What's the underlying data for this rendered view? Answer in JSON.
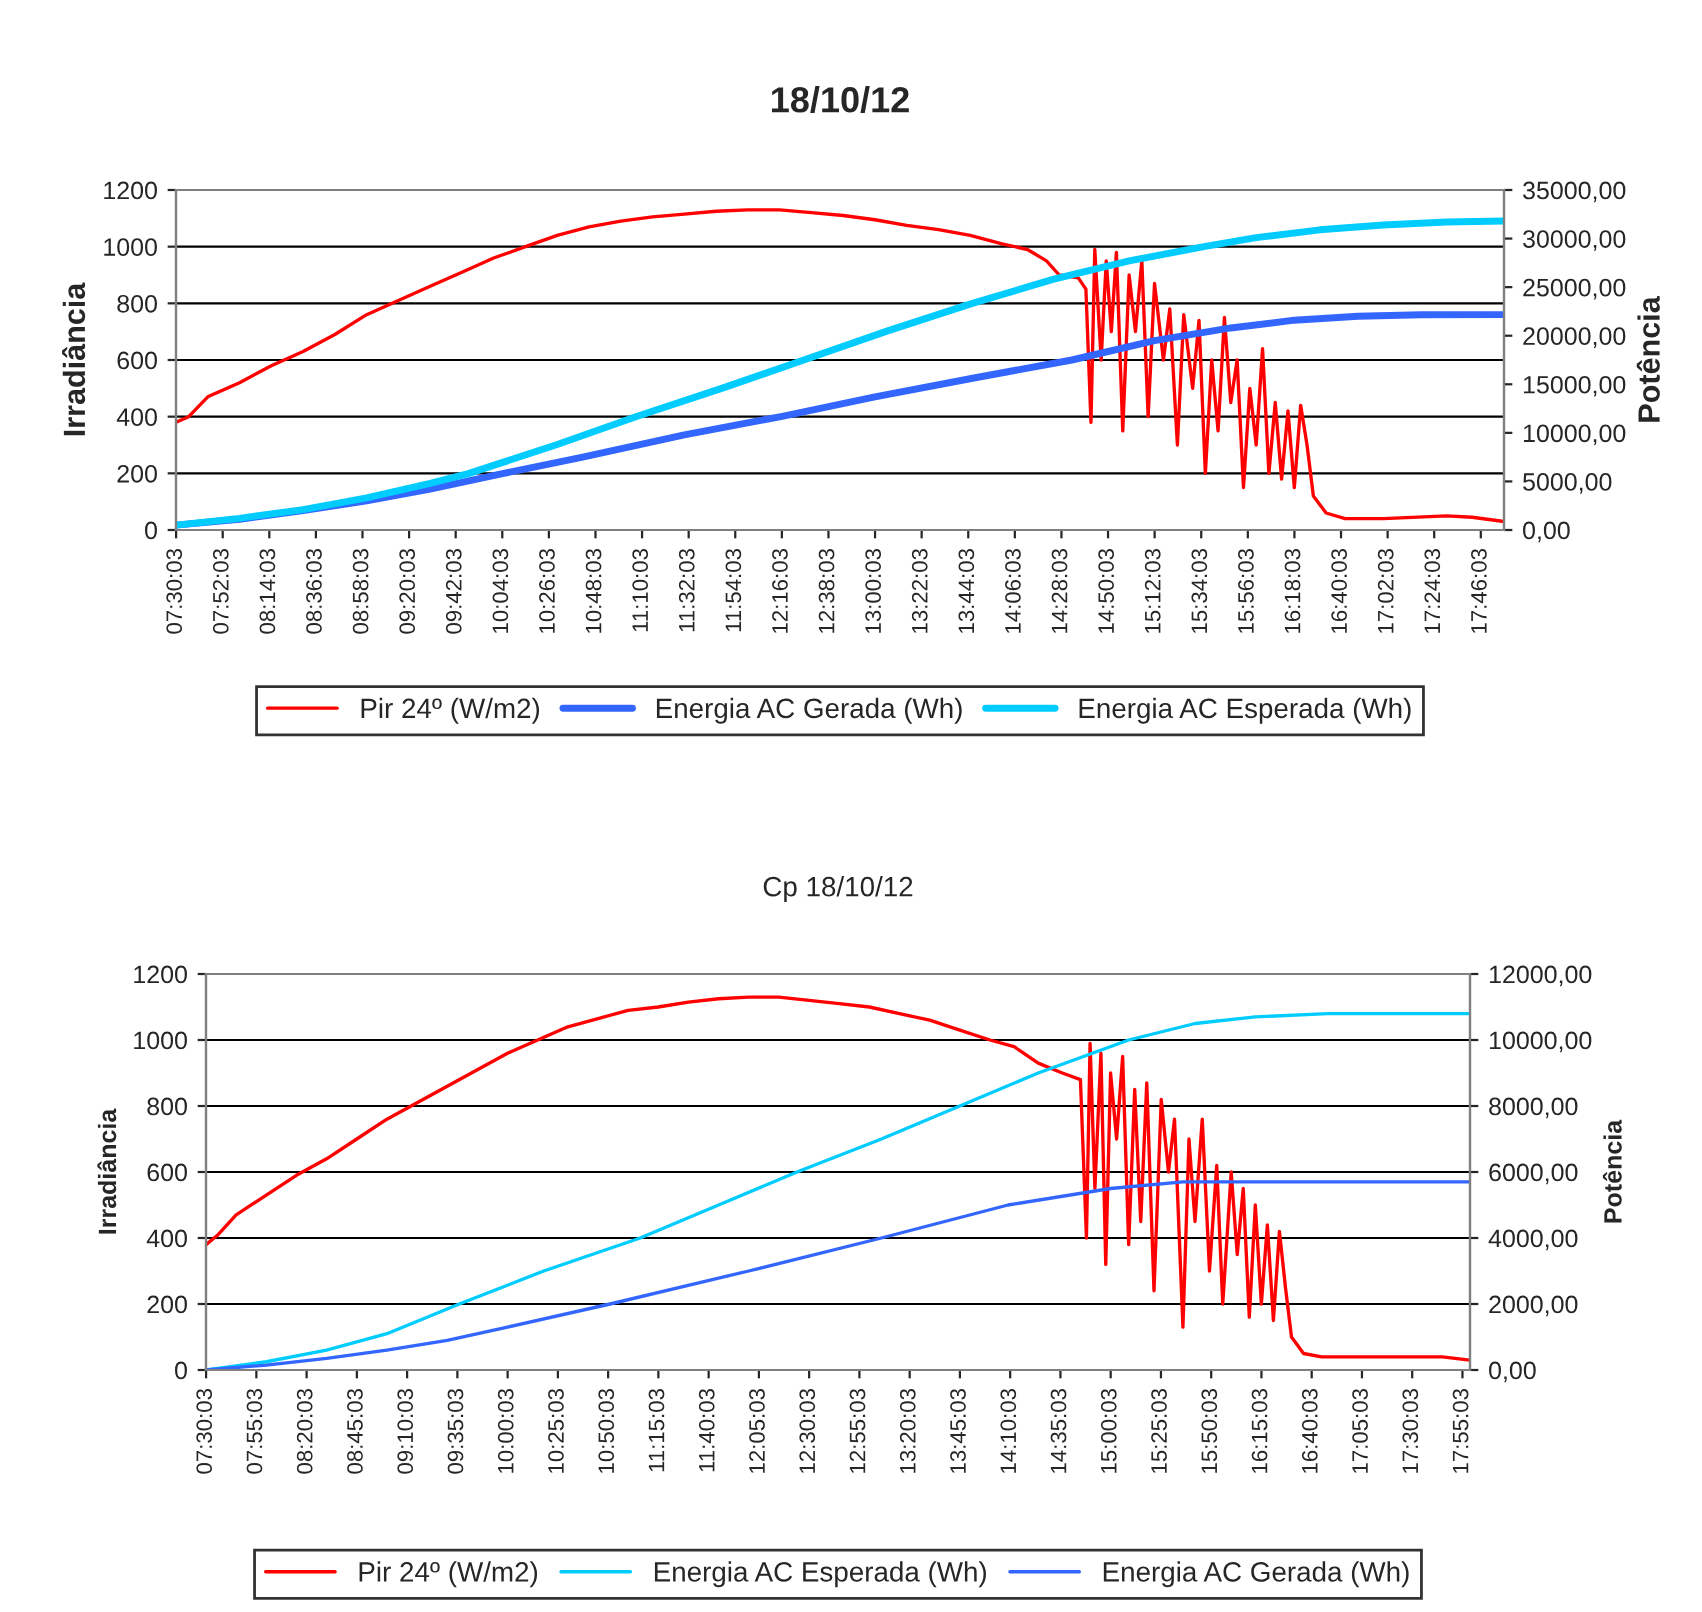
{
  "chart_data": [
    {
      "type": "line",
      "title": "18/10/12",
      "ylabel": "Irradiância",
      "y2label": "Potência",
      "xlim": [
        7.5,
        17.95
      ],
      "ylim": [
        0,
        1200
      ],
      "yticks": [
        0,
        200,
        400,
        600,
        800,
        1000,
        1200
      ],
      "y2lim": [
        0,
        35000
      ],
      "y2ticks": [
        {
          "value": 0,
          "label": "0,00"
        },
        {
          "value": 5000,
          "label": "5000,00"
        },
        {
          "value": 10000,
          "label": "10000,00"
        },
        {
          "value": 15000,
          "label": "15000,00"
        },
        {
          "value": 20000,
          "label": "20000,00"
        },
        {
          "value": 25000,
          "label": "25000,00"
        },
        {
          "value": 30000,
          "label": "30000,00"
        },
        {
          "value": 35000,
          "label": "35000,00"
        }
      ],
      "xticks": [
        {
          "value": 7.5008,
          "label": "07:30:03"
        },
        {
          "value": 7.8675,
          "label": "07:52:03"
        },
        {
          "value": 8.2342,
          "label": "08:14:03"
        },
        {
          "value": 8.6008,
          "label": "08:36:03"
        },
        {
          "value": 8.9675,
          "label": "08:58:03"
        },
        {
          "value": 9.3342,
          "label": "09:20:03"
        },
        {
          "value": 9.7008,
          "label": "09:42:03"
        },
        {
          "value": 10.0675,
          "label": "10:04:03"
        },
        {
          "value": 10.4342,
          "label": "10:26:03"
        },
        {
          "value": 10.8008,
          "label": "10:48:03"
        },
        {
          "value": 11.1675,
          "label": "11:10:03"
        },
        {
          "value": 11.5342,
          "label": "11:32:03"
        },
        {
          "value": 11.9008,
          "label": "11:54:03"
        },
        {
          "value": 12.2675,
          "label": "12:16:03"
        },
        {
          "value": 12.6342,
          "label": "12:38:03"
        },
        {
          "value": 13.0008,
          "label": "13:00:03"
        },
        {
          "value": 13.3675,
          "label": "13:22:03"
        },
        {
          "value": 13.7342,
          "label": "13:44:03"
        },
        {
          "value": 14.1008,
          "label": "14:06:03"
        },
        {
          "value": 14.4675,
          "label": "14:28:03"
        },
        {
          "value": 14.8342,
          "label": "14:50:03"
        },
        {
          "value": 15.2008,
          "label": "15:12:03"
        },
        {
          "value": 15.5675,
          "label": "15:34:03"
        },
        {
          "value": 15.9342,
          "label": "15:56:03"
        },
        {
          "value": 16.3008,
          "label": "16:18:03"
        },
        {
          "value": 16.6675,
          "label": "16:40:03"
        },
        {
          "value": 17.0342,
          "label": "17:02:03"
        },
        {
          "value": 17.4008,
          "label": "17:24:03"
        },
        {
          "value": 17.7675,
          "label": "17:46:03"
        }
      ],
      "grid": "y",
      "legend": "bottom",
      "marker": "none",
      "line_style": "solid",
      "series": [
        {
          "name": "Pir 24º (W/m2)",
          "color": "#ff0000",
          "x": [
            7.5,
            7.6,
            7.75,
            8.0,
            8.25,
            8.5,
            8.75,
            9.0,
            9.25,
            9.5,
            9.75,
            10.0,
            10.25,
            10.5,
            10.75,
            11.0,
            11.25,
            11.5,
            11.75,
            12.0,
            12.25,
            12.5,
            12.75,
            13.0,
            13.25,
            13.5,
            13.75,
            14.0,
            14.2,
            14.35,
            14.45,
            14.6,
            14.66,
            14.7,
            14.73,
            14.78,
            14.82,
            14.86,
            14.9,
            14.95,
            15.0,
            15.05,
            15.1,
            15.15,
            15.2,
            15.27,
            15.32,
            15.38,
            15.43,
            15.5,
            15.55,
            15.6,
            15.65,
            15.7,
            15.75,
            15.8,
            15.85,
            15.9,
            15.95,
            16.0,
            16.05,
            16.1,
            16.15,
            16.2,
            16.25,
            16.3,
            16.35,
            16.4,
            16.45,
            16.55,
            16.7,
            17.0,
            17.5,
            17.7,
            17.95
          ],
          "values": [
            380,
            400,
            470,
            520,
            580,
            630,
            690,
            760,
            810,
            860,
            910,
            960,
            1000,
            1040,
            1070,
            1090,
            1105,
            1115,
            1125,
            1130,
            1130,
            1120,
            1110,
            1095,
            1075,
            1060,
            1040,
            1010,
            990,
            950,
            900,
            890,
            850,
            380,
            990,
            600,
            950,
            700,
            980,
            350,
            900,
            700,
            950,
            400,
            870,
            600,
            780,
            300,
            760,
            500,
            740,
            200,
            600,
            350,
            750,
            450,
            600,
            150,
            500,
            300,
            640,
            200,
            450,
            180,
            420,
            150,
            440,
            300,
            120,
            60,
            40,
            40,
            50,
            45,
            30
          ]
        },
        {
          "name": "Energia AC Gerada (Wh)",
          "color": "#3366ff",
          "axis": "y2",
          "x": [
            7.5,
            8.0,
            8.5,
            9.0,
            9.5,
            10.07,
            10.7,
            11.5,
            12.27,
            13.0,
            13.8,
            14.55,
            15.2,
            15.8,
            16.3,
            16.8,
            17.3,
            17.95
          ],
          "values": [
            500,
            1100,
            2000,
            3000,
            4200,
            5800,
            7500,
            9800,
            11700,
            13700,
            15700,
            17500,
            19500,
            20800,
            21600,
            22000,
            22150,
            22170
          ]
        },
        {
          "name": "Energia AC Esperada (Wh)",
          "color": "#00ccff",
          "axis": "y2",
          "x": [
            7.5,
            8.0,
            8.5,
            9.0,
            9.5,
            9.8,
            10.5,
            11.13,
            11.8,
            12.44,
            13.1,
            13.76,
            14.4,
            15.0,
            15.6,
            16.0,
            16.5,
            17.0,
            17.5,
            17.95
          ],
          "values": [
            500,
            1200,
            2100,
            3300,
            4800,
            5800,
            8800,
            11700,
            14600,
            17500,
            20500,
            23300,
            25800,
            27700,
            29200,
            30100,
            30900,
            31400,
            31700,
            31800
          ]
        }
      ]
    },
    {
      "type": "line",
      "title": "Cp 18/10/12",
      "ylabel": "Irradiância",
      "y2label": "Potência",
      "xlim": [
        7.5,
        17.98
      ],
      "ylim": [
        0,
        1200
      ],
      "yticks": [
        0,
        200,
        400,
        600,
        800,
        1000,
        1200
      ],
      "y2lim": [
        0,
        12000
      ],
      "y2ticks": [
        {
          "value": 0,
          "label": "0,00"
        },
        {
          "value": 2000,
          "label": "2000,00"
        },
        {
          "value": 4000,
          "label": "4000,00"
        },
        {
          "value": 6000,
          "label": "6000,00"
        },
        {
          "value": 8000,
          "label": "8000,00"
        },
        {
          "value": 10000,
          "label": "10000,00"
        },
        {
          "value": 12000,
          "label": "12000,00"
        }
      ],
      "xticks": [
        {
          "value": 7.5008,
          "label": "07:30:03"
        },
        {
          "value": 7.9175,
          "label": "07:55:03"
        },
        {
          "value": 8.3342,
          "label": "08:20:03"
        },
        {
          "value": 8.7508,
          "label": "08:45:03"
        },
        {
          "value": 9.1675,
          "label": "09:10:03"
        },
        {
          "value": 9.5842,
          "label": "09:35:03"
        },
        {
          "value": 10.0008,
          "label": "10:00:03"
        },
        {
          "value": 10.4175,
          "label": "10:25:03"
        },
        {
          "value": 10.8342,
          "label": "10:50:03"
        },
        {
          "value": 11.2508,
          "label": "11:15:03"
        },
        {
          "value": 11.6675,
          "label": "11:40:03"
        },
        {
          "value": 12.0842,
          "label": "12:05:03"
        },
        {
          "value": 12.5008,
          "label": "12:30:03"
        },
        {
          "value": 12.9175,
          "label": "12:55:03"
        },
        {
          "value": 13.3342,
          "label": "13:20:03"
        },
        {
          "value": 13.7508,
          "label": "13:45:03"
        },
        {
          "value": 14.1675,
          "label": "14:10:03"
        },
        {
          "value": 14.5842,
          "label": "14:35:03"
        },
        {
          "value": 15.0008,
          "label": "15:00:03"
        },
        {
          "value": 15.4175,
          "label": "15:25:03"
        },
        {
          "value": 15.8342,
          "label": "15:50:03"
        },
        {
          "value": 16.2508,
          "label": "16:15:03"
        },
        {
          "value": 16.6675,
          "label": "16:40:03"
        },
        {
          "value": 17.0842,
          "label": "17:05:03"
        },
        {
          "value": 17.5008,
          "label": "17:30:03"
        },
        {
          "value": 17.9175,
          "label": "17:55:03"
        }
      ],
      "grid": "y",
      "legend": "bottom",
      "marker": "none",
      "line_style": "solid",
      "series": [
        {
          "name": "Pir 24º (W/m2)",
          "color": "#ff0000",
          "x": [
            7.5,
            7.6,
            7.75,
            8.0,
            8.25,
            8.5,
            8.75,
            9.0,
            9.25,
            9.5,
            9.75,
            10.0,
            10.25,
            10.5,
            10.75,
            11.0,
            11.25,
            11.5,
            11.75,
            12.0,
            12.25,
            12.5,
            12.75,
            13.0,
            13.25,
            13.5,
            13.75,
            14.0,
            14.2,
            14.4,
            14.6,
            14.75,
            14.8,
            14.83,
            14.87,
            14.92,
            14.96,
            15.0,
            15.05,
            15.1,
            15.15,
            15.2,
            15.25,
            15.3,
            15.36,
            15.42,
            15.48,
            15.53,
            15.6,
            15.65,
            15.7,
            15.76,
            15.82,
            15.88,
            15.93,
            16.0,
            16.05,
            16.1,
            16.15,
            16.2,
            16.25,
            16.3,
            16.35,
            16.4,
            16.45,
            16.5,
            16.6,
            16.75,
            17.0,
            17.5,
            17.75,
            17.98
          ],
          "values": [
            380,
            410,
            470,
            530,
            590,
            640,
            700,
            760,
            810,
            860,
            910,
            960,
            1000,
            1040,
            1065,
            1090,
            1100,
            1115,
            1125,
            1130,
            1130,
            1120,
            1110,
            1100,
            1080,
            1060,
            1030,
            1000,
            980,
            930,
            900,
            880,
            400,
            990,
            550,
            960,
            320,
            900,
            700,
            950,
            380,
            850,
            450,
            870,
            240,
            820,
            600,
            760,
            130,
            700,
            450,
            760,
            300,
            620,
            200,
            600,
            350,
            550,
            160,
            500,
            200,
            440,
            150,
            420,
            250,
            100,
            50,
            40,
            40,
            40,
            40,
            30
          ]
        },
        {
          "name": "Energia AC Esperada (Wh)",
          "color": "#00ccff",
          "axis": "y2",
          "x": [
            7.5,
            8.0,
            8.5,
            9.0,
            9.6,
            10.3,
            11.1,
            11.75,
            12.4,
            13.1,
            13.75,
            14.4,
            15.15,
            15.7,
            16.2,
            16.8,
            17.98
          ],
          "values": [
            0,
            250,
            600,
            1100,
            2000,
            3000,
            4000,
            5000,
            6000,
            7000,
            8000,
            9000,
            10000,
            10500,
            10700,
            10800,
            10800
          ]
        },
        {
          "name": "Energia AC Gerada (Wh)",
          "color": "#3366ff",
          "axis": "y2",
          "x": [
            7.5,
            8.0,
            8.5,
            9.0,
            9.5,
            10.0,
            10.85,
            12.0,
            13.1,
            14.15,
            15.0,
            15.6,
            17.98
          ],
          "values": [
            0,
            150,
            350,
            600,
            900,
            1300,
            2000,
            3000,
            4000,
            5000,
            5500,
            5700,
            5700
          ]
        }
      ]
    }
  ]
}
